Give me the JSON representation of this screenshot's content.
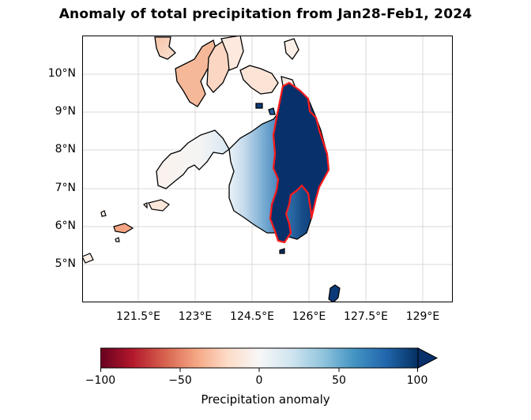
{
  "title": "Anomaly of total precipitation from Jan28-Feb1, 2024",
  "map": {
    "lat_ticks": [
      "10°N",
      "9°N",
      "8°N",
      "7°N",
      "6°N",
      "5°N"
    ],
    "lon_ticks": [
      "121.5°E",
      "123°E",
      "124.5°E",
      "126°E",
      "127.5°E",
      "129°E"
    ],
    "region_outline_color": "#ff1a1a",
    "coastline_color": "#000000"
  },
  "colorbar": {
    "ticks": [
      "−100",
      "−50",
      "0",
      "50",
      "100"
    ],
    "label": "Precipitation anomaly",
    "min": -100,
    "max": 100,
    "cmap": "RdBu",
    "extend": "max"
  }
}
